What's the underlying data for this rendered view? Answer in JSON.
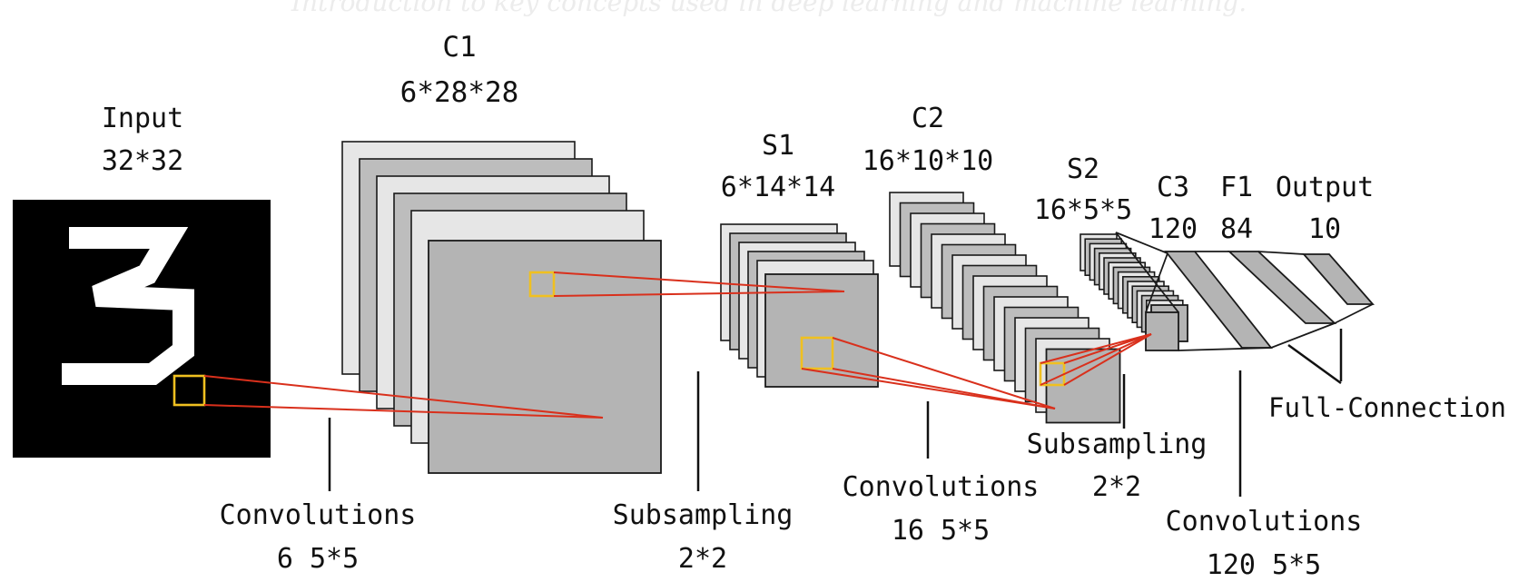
{
  "banner": "Introduction to key concepts used in deep learning and machine learning.",
  "input": {
    "name": "Input",
    "dims": "32*32",
    "digit": "3"
  },
  "c1": {
    "name": "C1",
    "dims": "6*28*28"
  },
  "s1": {
    "name": "S1",
    "dims": "6*14*14"
  },
  "c2": {
    "name": "C2",
    "dims": "16*10*10"
  },
  "s2": {
    "name": "S2",
    "dims": "16*5*5"
  },
  "c3": {
    "name": "C3",
    "dims": "120"
  },
  "f1": {
    "name": "F1",
    "dims": "84"
  },
  "output": {
    "name": "Output",
    "dims": "10"
  },
  "operations": {
    "conv1": {
      "title": "Convolutions",
      "detail": "6 5*5"
    },
    "sub1": {
      "title": "Subsampling",
      "detail": "2*2"
    },
    "conv2": {
      "title": "Convolutions",
      "detail": "16 5*5"
    },
    "sub2": {
      "title": "Subsampling",
      "detail": "2*2"
    },
    "conv3": {
      "title": "Convolutions",
      "detail": "120 5*5"
    },
    "full": {
      "title": "Full-Connection"
    }
  },
  "colors": {
    "map_light": "#e6e6e6",
    "map_dark": "#bdbdbd",
    "receptive_field": "#f0c020",
    "projection": "#d9301c"
  }
}
